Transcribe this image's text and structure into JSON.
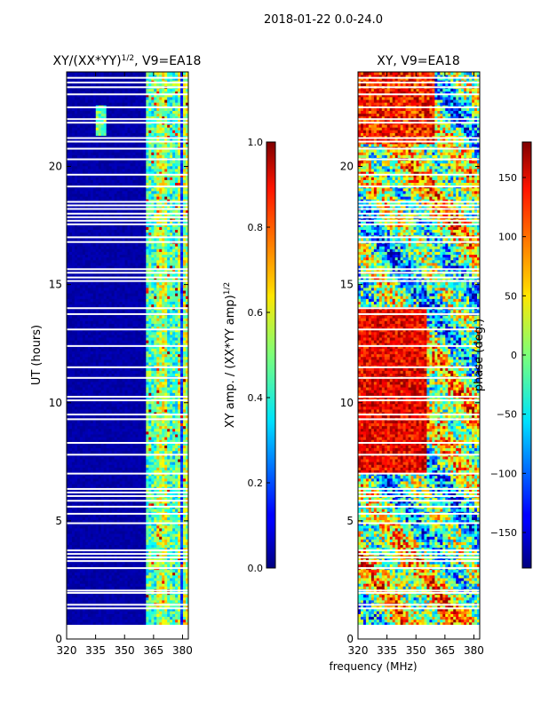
{
  "suptitle": "2018-01-22 0.0-24.0",
  "colors": {
    "background": "#ffffff",
    "frame": "#000000",
    "gap_stripe": "#ffffff",
    "jet_low": "#00007f",
    "jet_high": "#7f0000"
  },
  "chart_data": [
    {
      "type": "heatmap",
      "title": "XY/(XX*YY)",
      "title_exponent": "1/2",
      "title_suffix": ", V9=EA18",
      "xlabel": "",
      "ylabel": "UT (hours)",
      "xlim": [
        320,
        383
      ],
      "ylim": [
        0,
        24
      ],
      "xticks": [
        {
          "value": 320,
          "label": "320"
        },
        {
          "value": 335,
          "label": "335"
        },
        {
          "value": 350,
          "label": "350"
        },
        {
          "value": 365,
          "label": "365"
        },
        {
          "value": 380,
          "label": "380"
        }
      ],
      "yticks": [
        {
          "value": 0,
          "label": "0"
        },
        {
          "value": 5,
          "label": "5"
        },
        {
          "value": 10,
          "label": "10"
        },
        {
          "value": 15,
          "label": "15"
        },
        {
          "value": 20,
          "label": "20"
        }
      ],
      "data_start_hour": 0.6,
      "colorbar": {
        "label": "XY amp. / (XX*YY amp)",
        "label_exponent": "1/2",
        "vmin": 0.0,
        "vmax": 1.0,
        "ticks": [
          {
            "value": 0.0,
            "label": "0.0"
          },
          {
            "value": 0.2,
            "label": "0.2"
          },
          {
            "value": 0.4,
            "label": "0.4"
          },
          {
            "value": 0.6,
            "label": "0.6"
          },
          {
            "value": 0.8,
            "label": "0.8"
          },
          {
            "value": 1.0,
            "label": "1.0"
          }
        ]
      }
    },
    {
      "type": "heatmap",
      "title": "XY, V9=EA18",
      "xlabel": "frequency (MHz)",
      "ylabel": "",
      "xlim": [
        320,
        383
      ],
      "ylim": [
        0,
        24
      ],
      "xticks": [
        {
          "value": 320,
          "label": "320"
        },
        {
          "value": 335,
          "label": "335"
        },
        {
          "value": 350,
          "label": "350"
        },
        {
          "value": 365,
          "label": "365"
        },
        {
          "value": 380,
          "label": "380"
        }
      ],
      "yticks": [
        {
          "value": 0,
          "label": "0"
        },
        {
          "value": 5,
          "label": "5"
        },
        {
          "value": 10,
          "label": "10"
        },
        {
          "value": 15,
          "label": "15"
        },
        {
          "value": 20,
          "label": "20"
        }
      ],
      "data_start_hour": 0.6,
      "colorbar": {
        "label": "phase (deg.)",
        "vmin": -180,
        "vmax": 180,
        "ticks": [
          {
            "value": -150,
            "label": "−150"
          },
          {
            "value": -100,
            "label": "−100"
          },
          {
            "value": -50,
            "label": "−50"
          },
          {
            "value": 0,
            "label": "0"
          },
          {
            "value": 50,
            "label": "50"
          },
          {
            "value": 100,
            "label": "100"
          },
          {
            "value": 150,
            "label": "150"
          }
        ]
      }
    }
  ],
  "flagged_hours": [
    1.3,
    1.45,
    1.95,
    2.05,
    3.0,
    3.3,
    3.45,
    3.6,
    3.75,
    4.9,
    5.3,
    5.6,
    5.85,
    6.05,
    6.2,
    6.35,
    7.0,
    7.8,
    8.3,
    9.3,
    9.5,
    10.1,
    10.25,
    11.05,
    11.5,
    12.4,
    13.1,
    13.75,
    14.0,
    15.15,
    15.3,
    15.5,
    15.65,
    16.8,
    17.0,
    17.55,
    17.7,
    17.85,
    18.0,
    18.2,
    18.35,
    18.5,
    19.15,
    19.65,
    20.3,
    20.75,
    21.05,
    21.2,
    21.85,
    22.0,
    22.5,
    23.05,
    23.35,
    23.55,
    23.75
  ]
}
